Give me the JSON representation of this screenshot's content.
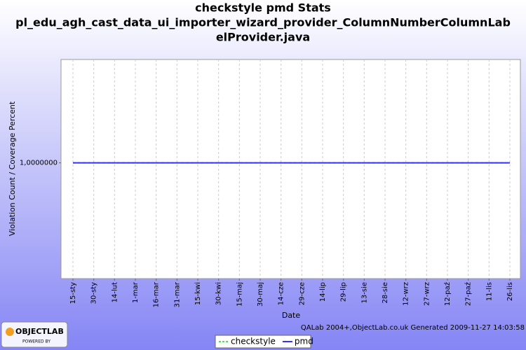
{
  "chart_data": {
    "type": "line",
    "title_lines": [
      "checkstyle pmd  Stats",
      "pl_edu_agh_cast_data_ui_importer_wizard_provider_ColumnNumberColumnLab",
      "elProvider.java"
    ],
    "x_label": "Date",
    "y_label": "Violation Count / Coverage Percent",
    "categories": [
      "15-sty",
      "30-sty",
      "14-lut",
      "1-mar",
      "16-mar",
      "31-mar",
      "15-kwi",
      "30-kwi",
      "15-maj",
      "30-maj",
      "14-cze",
      "29-cze",
      "14-lip",
      "29-lip",
      "13-sie",
      "28-sie",
      "12-wrz",
      "27-wrz",
      "12-paź",
      "27-paź",
      "11-lis",
      "26-lis"
    ],
    "series": [
      {
        "name": "checkstyle",
        "color": "#55dd55",
        "dashed": true,
        "values": [
          1,
          1,
          1,
          1,
          1,
          1,
          1,
          1,
          1,
          1,
          1,
          1,
          1,
          1,
          1,
          1,
          1,
          1,
          1,
          1,
          1,
          1
        ]
      },
      {
        "name": "pmd",
        "color": "#3333ff",
        "dashed": false,
        "values": [
          1,
          1,
          1,
          1,
          1,
          1,
          1,
          1,
          1,
          1,
          1,
          1,
          1,
          1,
          1,
          1,
          1,
          1,
          1,
          1,
          1,
          1
        ]
      }
    ],
    "ylim": [
      0.44,
      1.5
    ],
    "yticks": [
      {
        "value": 1,
        "label": "1,0000000"
      }
    ],
    "grid": true,
    "legend": "bottom",
    "footer": "QALab 2004+,ObjectLab.co.uk Generated 2009-11-27 14:03:58",
    "logo": {
      "name": "OBJECTLAB",
      "tagline": "POWERED BY"
    }
  }
}
